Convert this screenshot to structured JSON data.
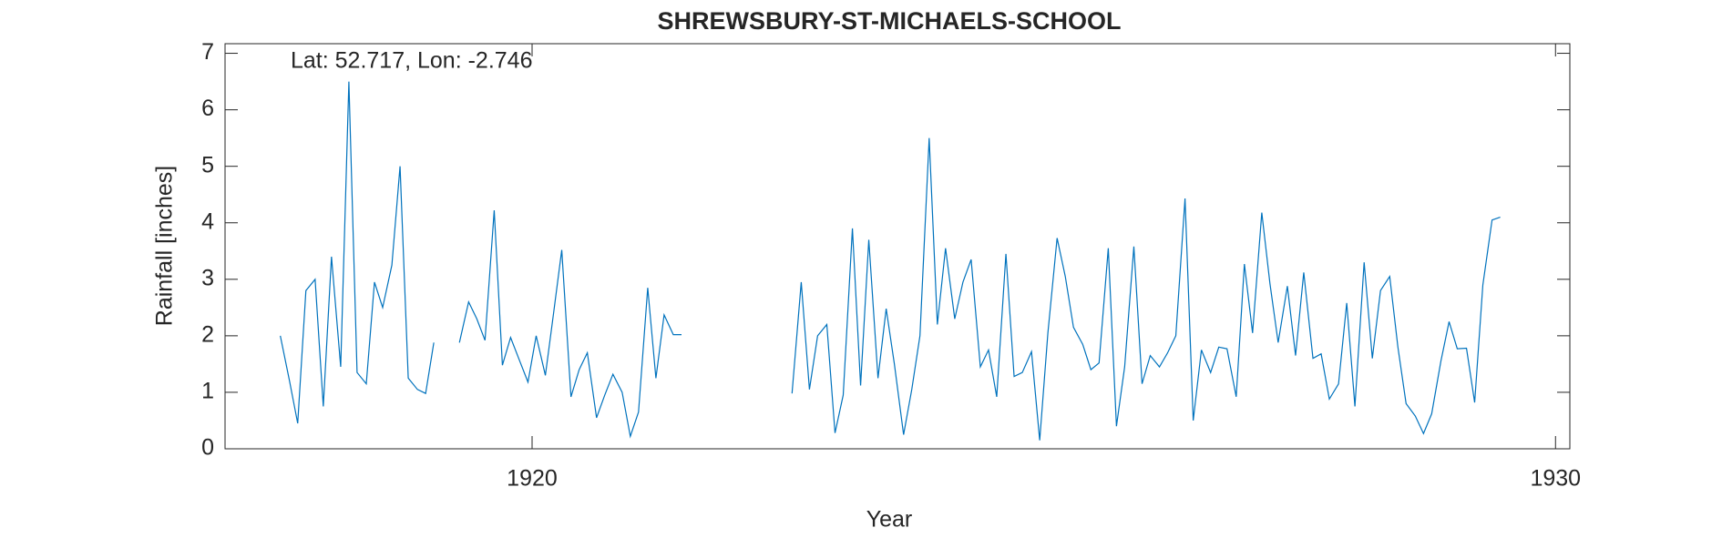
{
  "chart_data": {
    "type": "line",
    "title": "SHREWSBURY-ST-MICHAELS-SCHOOL",
    "annotation": "Lat: 52.717, Lon: -2.746",
    "x_label": "Year",
    "y_label": "Rainfall [inches]",
    "color": "#0072bd",
    "grid": false,
    "xlim": [
      1917,
      1930.14
    ],
    "ylim": [
      0,
      7.17
    ],
    "xticks": [
      1920,
      1930
    ],
    "yticks": [
      0,
      1,
      2,
      3,
      4,
      5,
      6,
      7
    ],
    "x": [
      1917.54,
      1917.63,
      1917.71,
      1917.79,
      1917.88,
      1917.96,
      1918.04,
      1918.13,
      1918.21,
      1918.29,
      1918.38,
      1918.46,
      1918.54,
      1918.63,
      1918.71,
      1918.79,
      1918.88,
      1918.96,
      1919.04,
      1919.13,
      1919.21,
      1919.29,
      1919.38,
      1919.46,
      1919.54,
      1919.63,
      1919.71,
      1919.79,
      1919.88,
      1919.96,
      1920.04,
      1920.13,
      1920.21,
      1920.29,
      1920.38,
      1920.46,
      1920.54,
      1920.63,
      1920.71,
      1920.79,
      1920.88,
      1920.96,
      1921.04,
      1921.13,
      1921.21,
      1921.29,
      1921.38,
      1921.46,
      1921.54,
      1921.63,
      1921.71,
      1921.79,
      1921.88,
      1921.96,
      1922.04,
      1922.13,
      1922.21,
      1922.29,
      1922.38,
      1922.46,
      1922.54,
      1922.63,
      1922.71,
      1922.79,
      1922.88,
      1922.96,
      1923.04,
      1923.13,
      1923.21,
      1923.29,
      1923.38,
      1923.46,
      1923.54,
      1923.63,
      1923.71,
      1923.79,
      1923.88,
      1923.96,
      1924.04,
      1924.13,
      1924.21,
      1924.29,
      1924.38,
      1924.46,
      1924.54,
      1924.63,
      1924.71,
      1924.79,
      1924.88,
      1924.96,
      1925.04,
      1925.13,
      1925.21,
      1925.29,
      1925.38,
      1925.46,
      1925.54,
      1925.63,
      1925.71,
      1925.79,
      1925.88,
      1925.96,
      1926.04,
      1926.13,
      1926.21,
      1926.29,
      1926.38,
      1926.46,
      1926.54,
      1926.63,
      1926.71,
      1926.79,
      1926.88,
      1926.96,
      1927.04,
      1927.13,
      1927.21,
      1927.29,
      1927.38,
      1927.46,
      1927.54,
      1927.63,
      1927.71,
      1927.79,
      1927.88,
      1927.96,
      1928.04,
      1928.13,
      1928.21,
      1928.29,
      1928.38,
      1928.46,
      1928.54,
      1928.63,
      1928.71,
      1928.79,
      1928.88,
      1928.96,
      1929.04,
      1929.13,
      1929.21,
      1929.29,
      1929.38,
      1929.46
    ],
    "values": [
      2.0,
      1.2,
      0.45,
      2.8,
      3.0,
      0.75,
      3.4,
      1.45,
      6.5,
      1.35,
      1.15,
      2.95,
      2.5,
      3.25,
      5.0,
      1.25,
      1.05,
      0.98,
      1.88,
      null,
      null,
      1.88,
      2.6,
      2.3,
      1.92,
      4.22,
      1.48,
      1.97,
      1.55,
      1.18,
      2.0,
      1.3,
      2.4,
      3.52,
      0.92,
      1.4,
      1.7,
      0.55,
      0.95,
      1.32,
      1.0,
      0.22,
      0.65,
      2.85,
      1.25,
      2.37,
      2.02,
      2.02,
      null,
      null,
      null,
      null,
      null,
      null,
      null,
      null,
      null,
      null,
      null,
      null,
      0.98,
      2.95,
      1.05,
      2.0,
      2.2,
      0.28,
      0.95,
      3.9,
      1.12,
      3.7,
      1.25,
      2.48,
      1.5,
      0.25,
      1.05,
      2.0,
      5.5,
      2.2,
      3.55,
      2.3,
      2.95,
      3.35,
      1.45,
      1.75,
      0.92,
      3.45,
      1.28,
      1.35,
      1.72,
      0.15,
      2.05,
      3.73,
      3.05,
      2.15,
      1.85,
      1.4,
      1.52,
      3.55,
      0.4,
      1.45,
      3.58,
      1.15,
      1.65,
      1.45,
      1.7,
      2.0,
      4.43,
      0.5,
      1.75,
      1.35,
      1.8,
      1.77,
      0.92,
      3.27,
      2.05,
      4.18,
      2.92,
      1.88,
      2.88,
      1.65,
      3.12,
      1.6,
      1.68,
      0.88,
      1.15,
      2.58,
      0.75,
      3.3,
      1.6,
      2.8,
      3.05,
      1.8,
      0.8,
      0.58,
      0.27,
      0.62,
      1.55,
      2.25,
      1.77,
      1.78,
      0.82,
      2.9,
      4.05,
      4.1
    ]
  }
}
